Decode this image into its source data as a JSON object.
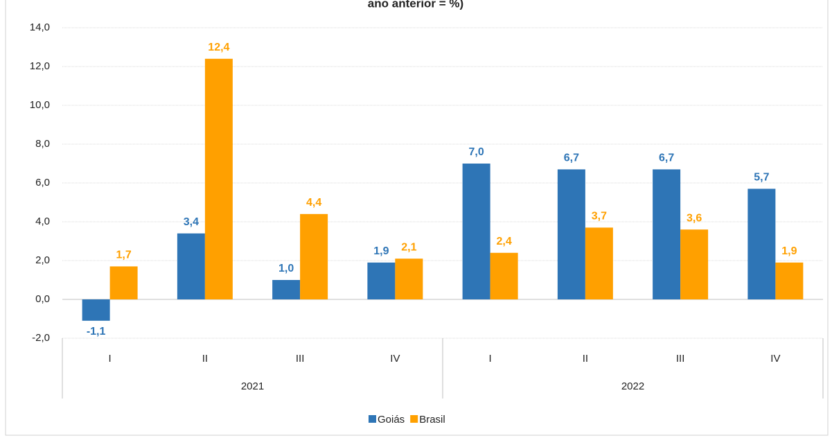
{
  "chart_data": {
    "type": "bar",
    "title": "ano anterior = %)",
    "categories": [
      "I",
      "II",
      "III",
      "IV",
      "I",
      "II",
      "III",
      "IV"
    ],
    "groups": [
      "2021",
      "2022"
    ],
    "series": [
      {
        "name": "Goiás",
        "color": "#2e75b6",
        "values": [
          -1.1,
          3.4,
          1.0,
          1.9,
          7.0,
          6.7,
          6.7,
          5.7
        ],
        "value_labels": [
          "-1,1",
          "3,4",
          "1,0",
          "1,9",
          "7,0",
          "6,7",
          "6,7",
          "5,7"
        ]
      },
      {
        "name": "Brasil",
        "color": "#ffa000",
        "values": [
          1.7,
          12.4,
          4.4,
          2.1,
          2.4,
          3.7,
          3.6,
          1.9
        ],
        "value_labels": [
          "1,7",
          "12,4",
          "4,4",
          "2,1",
          "2,4",
          "3,7",
          "3,6",
          "1,9"
        ]
      }
    ],
    "ylim": [
      -2,
      14
    ],
    "yticks": [
      {
        "value": -2,
        "label": "-2,0"
      },
      {
        "value": 0,
        "label": "0,0"
      },
      {
        "value": 2,
        "label": "2,0"
      },
      {
        "value": 4,
        "label": "4,0"
      },
      {
        "value": 6,
        "label": "6,0"
      },
      {
        "value": 8,
        "label": "8,0"
      },
      {
        "value": 10,
        "label": "10,0"
      },
      {
        "value": 12,
        "label": "12,0"
      },
      {
        "value": 14,
        "label": "14,0"
      }
    ],
    "grid": true,
    "legend": "bottom"
  }
}
